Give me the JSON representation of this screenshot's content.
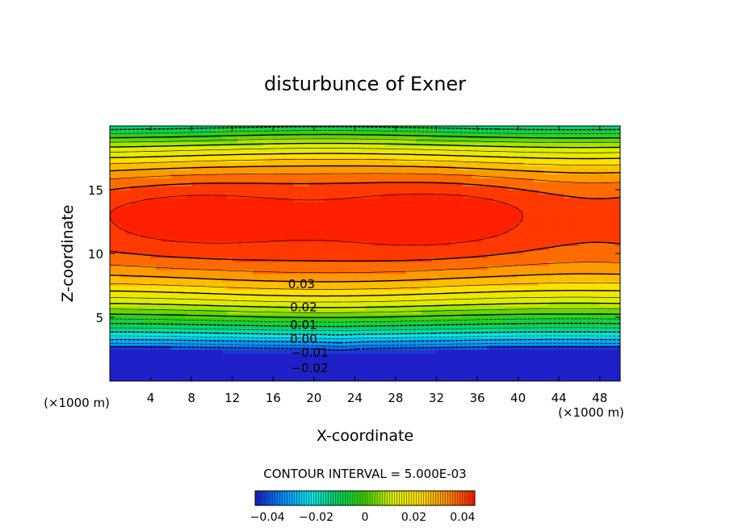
{
  "chart_data": {
    "type": "contour",
    "title": "disturbunce of Exner",
    "xlabel": "X-coordinate",
    "ylabel": "Z-coordinate",
    "x_unit": "(×1000 m)",
    "y_unit": "(×1000 m)",
    "xlim": [
      0,
      50
    ],
    "ylim": [
      0,
      20
    ],
    "x_ticks": [
      4,
      8,
      12,
      16,
      20,
      24,
      28,
      32,
      36,
      40,
      44,
      48
    ],
    "y_ticks": [
      5,
      10,
      15
    ],
    "contour_interval_text": "CONTOUR INTERVAL = 5.000E-03",
    "contour_interval": 0.005,
    "value_range": [
      -0.045,
      0.045
    ],
    "contour_labels": [
      {
        "text": "0.03",
        "x": 17.2,
        "z": 7.6
      },
      {
        "text": "0.02",
        "x": 17.4,
        "z": 5.8
      },
      {
        "text": "0.01",
        "x": 17.4,
        "z": 4.4
      },
      {
        "text": "0.00",
        "x": 17.4,
        "z": 3.3
      },
      {
        "text": "−0.01",
        "x": 18.0,
        "z": 2.2
      },
      {
        "text": "−0.02",
        "x": 18.0,
        "z": 1.0
      }
    ],
    "colorbar": {
      "min": -0.045,
      "max": 0.045,
      "tick_labels": [
        "−0.04",
        "−0.02",
        "0",
        "0.02",
        "0.04"
      ],
      "tick_values": [
        -0.04,
        -0.02,
        0,
        0.02,
        0.04
      ]
    },
    "colors": [
      "#2020c8",
      "#0090ff",
      "#00e8e8",
      "#00d060",
      "#40d000",
      "#d8f000",
      "#ffe000",
      "#ff9000",
      "#ff2000"
    ]
  }
}
